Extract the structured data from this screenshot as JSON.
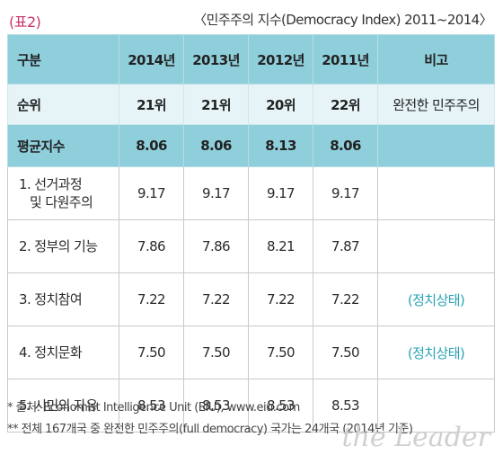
{
  "label": "(표2)",
  "title": "〈민주주의 지수(Democracy Index) 2011~2014〉",
  "header": {
    "category": "구분",
    "years": [
      "2014년",
      "2013년",
      "2012년",
      "2011년"
    ],
    "note": "비고"
  },
  "rank_row": {
    "label": "순위",
    "values": [
      "21위",
      "21위",
      "20위",
      "22위"
    ],
    "note": "완전한 민주주의"
  },
  "avg_row": {
    "label": "평균지수",
    "values": [
      "8.06",
      "8.06",
      "8.13",
      "8.06"
    ],
    "note": ""
  },
  "rows": [
    {
      "name_line1": "1. 선거과정",
      "name_line2": "및 다원주의",
      "values": [
        "9.17",
        "9.17",
        "9.17",
        "9.17"
      ],
      "note": ""
    },
    {
      "name_line1": "2. 정부의 기능",
      "name_line2": "",
      "values": [
        "7.86",
        "7.86",
        "8.21",
        "7.87"
      ],
      "note": ""
    },
    {
      "name_line1": "3. 정치참여",
      "name_line2": "",
      "values": [
        "7.22",
        "7.22",
        "7.22",
        "7.22"
      ],
      "note": "(정치상태)"
    },
    {
      "name_line1": "4. 정치문화",
      "name_line2": "",
      "values": [
        "7.50",
        "7.50",
        "7.50",
        "7.50"
      ],
      "note": "(정치상태)"
    },
    {
      "name_line1": "5. 시민의 자유",
      "name_line2": "",
      "values": [
        "8.53",
        "8.53",
        "8.53",
        "8.53"
      ],
      "note": ""
    }
  ],
  "footnotes": [
    "* 출처: Economist Intelligence Unit (EIU), www.eiu.com",
    "** 전체 167개국 중 완전한 민주주의(full democracy) 국가는 24개국 (2014년 기준)"
  ],
  "watermark": "the Leader",
  "colors": {
    "header_bg": "#8fcfdc",
    "rank_bg": "#e6f4f7",
    "accent_text": "#2aa3b6",
    "label_pink": "#c8336a"
  }
}
